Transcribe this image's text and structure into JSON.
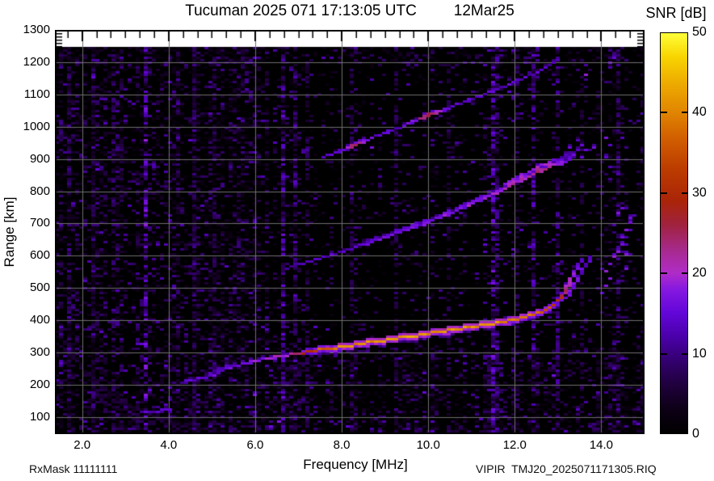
{
  "title": {
    "text": "Tucuman 2025 071 17:13:05 UTC",
    "date": "12Mar25"
  },
  "colorbar": {
    "title": "SNR [dB]",
    "min": 0,
    "max": 50,
    "ticks": [
      0,
      10,
      20,
      30,
      40,
      50
    ],
    "stops": [
      [
        0,
        "#000000"
      ],
      [
        3,
        "#0d0016"
      ],
      [
        6,
        "#1f003c"
      ],
      [
        9,
        "#33006e"
      ],
      [
        12,
        "#4a00a8"
      ],
      [
        15,
        "#6206d8"
      ],
      [
        18,
        "#8618e0"
      ],
      [
        20,
        "#b02cc8"
      ],
      [
        23,
        "#a62a8a"
      ],
      [
        26,
        "#a02240"
      ],
      [
        29,
        "#aa2408"
      ],
      [
        33,
        "#bc3c00"
      ],
      [
        37,
        "#d26000"
      ],
      [
        40,
        "#e08400"
      ],
      [
        44,
        "#eeae00"
      ],
      [
        47,
        "#f8d400"
      ],
      [
        50,
        "#ffff38"
      ]
    ]
  },
  "axes": {
    "x": {
      "label": "Frequency [MHz]",
      "unit": "MHz",
      "range": [
        1.37,
        15.0
      ],
      "tick_values": [
        2,
        4,
        6,
        8,
        10,
        12,
        14
      ],
      "tick_labels": [
        "2.0",
        "4.0",
        "6.0",
        "8.0",
        "10.0",
        "12.0",
        "14.0"
      ]
    },
    "y": {
      "label": "Range [km]",
      "unit": "km",
      "range": [
        47,
        1300
      ],
      "tick_values": [
        1300,
        1200,
        1100,
        1000,
        900,
        800,
        700,
        600,
        500,
        400,
        300,
        200,
        100
      ]
    }
  },
  "footer": {
    "rx_mask": "RxMask 11111111",
    "file": "VIPIR  TMJ20_2025071171305.RIQ"
  },
  "chart_data": {
    "type": "heatmap",
    "title": "Tucuman 2025 071 17:13:05 UTC 12Mar25",
    "xlabel": "Frequency [MHz]",
    "ylabel": "Range [km]",
    "value_label": "SNR [dB]",
    "x_range_mhz": [
      1.37,
      15.0
    ],
    "y_range_km": [
      47,
      1300
    ],
    "snr_range_db": [
      0,
      50
    ],
    "grid": true,
    "grid_color": "#6e6e6e",
    "background": "#000000",
    "no_data_band_km": [
      1247,
      1300
    ],
    "series": [
      {
        "name": "echo-1hop-O",
        "kind": "line",
        "thick": [
          1,
          1
        ],
        "points_f_km_db": [
          [
            4.25,
            212,
            13
          ],
          [
            4.5,
            218,
            13
          ],
          [
            4.75,
            226,
            14
          ],
          [
            5.0,
            232,
            14
          ],
          [
            5.2,
            248,
            15
          ],
          [
            5.45,
            262,
            15
          ],
          [
            5.7,
            270,
            16
          ],
          [
            5.95,
            277,
            17
          ],
          [
            6.2,
            283,
            18
          ],
          [
            6.45,
            290,
            19
          ],
          [
            6.7,
            295,
            21
          ],
          [
            6.95,
            301,
            25
          ],
          [
            7.3,
            308,
            32
          ],
          [
            7.6,
            314,
            38
          ],
          [
            8.0,
            322,
            40
          ],
          [
            8.4,
            330,
            41
          ],
          [
            8.8,
            338,
            40
          ],
          [
            9.2,
            347,
            41
          ],
          [
            9.6,
            355,
            42
          ],
          [
            10.0,
            363,
            41
          ],
          [
            10.4,
            371,
            42
          ],
          [
            10.8,
            380,
            41
          ],
          [
            11.2,
            388,
            40
          ],
          [
            11.6,
            397,
            41
          ],
          [
            11.9,
            404,
            40
          ],
          [
            12.2,
            413,
            39
          ],
          [
            12.45,
            423,
            38
          ],
          [
            12.65,
            434,
            36
          ],
          [
            12.8,
            446,
            35
          ],
          [
            12.95,
            460,
            33
          ],
          [
            13.05,
            477,
            28
          ],
          [
            13.13,
            495,
            24
          ],
          [
            13.2,
            513,
            20
          ],
          [
            13.27,
            532,
            18
          ],
          [
            13.33,
            550,
            17
          ],
          [
            13.4,
            568,
            16
          ],
          [
            13.47,
            586,
            15
          ],
          [
            13.54,
            603,
            15
          ]
        ]
      },
      {
        "name": "echo-1hop-cusp-branch",
        "kind": "line",
        "thick": [
          1,
          1
        ],
        "points_f_km_db": [
          [
            4.95,
            240,
            13
          ],
          [
            5.12,
            252,
            14
          ],
          [
            5.3,
            261,
            14
          ],
          [
            5.5,
            268,
            14
          ]
        ]
      },
      {
        "name": "echo-1hop-X-branch",
        "kind": "line",
        "thick": [
          1,
          1
        ],
        "points_f_km_db": [
          [
            13.15,
            470,
            16
          ],
          [
            13.25,
            494,
            16
          ],
          [
            13.35,
            518,
            16
          ],
          [
            13.45,
            542,
            15
          ],
          [
            13.55,
            565,
            15
          ],
          [
            13.65,
            588,
            14
          ],
          [
            13.73,
            608,
            14
          ]
        ]
      },
      {
        "name": "echo-1hop-scatter",
        "kind": "dots",
        "points_f_km_db": [
          [
            14.04,
            511,
            16
          ],
          [
            14.06,
            556,
            17
          ],
          [
            14.14,
            531,
            15
          ],
          [
            14.16,
            576,
            16
          ],
          [
            14.25,
            598,
            17
          ],
          [
            14.32,
            618,
            16
          ],
          [
            14.4,
            638,
            16
          ],
          [
            14.47,
            659,
            15
          ],
          [
            14.55,
            681,
            16
          ],
          [
            14.61,
            704,
            15
          ],
          [
            14.57,
            611,
            15
          ],
          [
            14.51,
            566,
            14
          ],
          [
            14.32,
            736,
            15
          ],
          [
            14.42,
            754,
            15
          ],
          [
            14.66,
            724,
            14
          ]
        ]
      },
      {
        "name": "echo-2hop",
        "kind": "line",
        "thick": [
          1,
          3
        ],
        "points_f_km_db": [
          [
            6.7,
            566,
            12
          ],
          [
            6.95,
            576,
            12
          ],
          [
            7.2,
            585,
            13
          ],
          [
            7.45,
            595,
            13
          ],
          [
            7.7,
            606,
            13
          ],
          [
            7.95,
            616,
            14
          ],
          [
            8.2,
            626,
            14
          ],
          [
            8.45,
            638,
            14
          ],
          [
            8.7,
            650,
            15
          ],
          [
            8.95,
            661,
            15
          ],
          [
            9.2,
            673,
            15
          ],
          [
            9.45,
            684,
            16
          ],
          [
            9.7,
            696,
            16
          ],
          [
            9.95,
            708,
            16
          ],
          [
            10.2,
            721,
            17
          ],
          [
            10.45,
            734,
            17
          ],
          [
            10.7,
            748,
            17
          ],
          [
            10.95,
            763,
            18
          ],
          [
            11.2,
            778,
            18
          ],
          [
            11.45,
            794,
            19
          ],
          [
            11.7,
            810,
            20
          ],
          [
            11.95,
            827,
            21
          ],
          [
            12.2,
            843,
            22
          ],
          [
            12.4,
            857,
            22
          ],
          [
            12.6,
            870,
            23
          ],
          [
            12.8,
            881,
            21
          ],
          [
            13.0,
            890,
            19
          ],
          [
            13.15,
            897,
            17
          ],
          [
            13.3,
            901,
            15
          ]
        ]
      },
      {
        "name": "echo-2hop-spread",
        "kind": "dots",
        "points_f_km_db": [
          [
            13.2,
            908,
            14
          ],
          [
            13.32,
            918,
            14
          ],
          [
            13.42,
            928,
            13
          ],
          [
            13.27,
            940,
            13
          ],
          [
            13.47,
            946,
            13
          ],
          [
            13.37,
            958,
            12
          ],
          [
            13.52,
            912,
            14
          ],
          [
            13.57,
            932,
            13
          ],
          [
            13.12,
            915,
            13
          ],
          [
            13.05,
            905,
            14
          ]
        ]
      },
      {
        "name": "echo-2hop-scatter",
        "kind": "dots",
        "points_f_km_db": [
          [
            13.76,
            939,
            14
          ],
          [
            14.04,
            966,
            15
          ],
          [
            14.1,
            911,
            14
          ]
        ]
      },
      {
        "name": "echo-3hop",
        "kind": "line",
        "thick": [
          1,
          1
        ],
        "points_f_km_db": [
          [
            7.55,
            910,
            13
          ],
          [
            7.8,
            922,
            13
          ],
          [
            8.05,
            935,
            14
          ],
          [
            8.2,
            945,
            26
          ],
          [
            8.3,
            950,
            24
          ],
          [
            8.55,
            963,
            15
          ],
          [
            8.8,
            977,
            14
          ],
          [
            9.05,
            990,
            15
          ],
          [
            9.3,
            1003,
            14
          ],
          [
            9.55,
            1016,
            15
          ],
          [
            9.8,
            1029,
            22
          ],
          [
            9.95,
            1038,
            28
          ],
          [
            10.1,
            1046,
            24
          ],
          [
            10.3,
            1055,
            15
          ],
          [
            10.55,
            1068,
            14
          ],
          [
            10.8,
            1081,
            14
          ],
          [
            11.05,
            1094,
            14
          ],
          [
            11.3,
            1107,
            13
          ],
          [
            11.55,
            1121,
            13
          ],
          [
            11.8,
            1134,
            14
          ],
          [
            12.05,
            1148,
            13
          ],
          [
            12.3,
            1162,
            13
          ],
          [
            12.5,
            1175,
            13
          ],
          [
            12.7,
            1189,
            12
          ],
          [
            12.85,
            1202,
            12
          ],
          [
            12.95,
            1212,
            12
          ]
        ]
      },
      {
        "name": "e-region-echo",
        "kind": "line",
        "thick": [
          1,
          1
        ],
        "points_f_km_db": [
          [
            3.3,
            120,
            13
          ],
          [
            3.5,
            123,
            14
          ],
          [
            3.7,
            122,
            13
          ],
          [
            3.9,
            125,
            13
          ],
          [
            4.05,
            121,
            12
          ]
        ]
      }
    ],
    "rfi_lines": [
      {
        "f": 2.72,
        "s": 0.4
      },
      {
        "f": 3.42,
        "s": 0.95
      },
      {
        "f": 4.55,
        "s": 0.35
      },
      {
        "f": 5.05,
        "s": 0.3
      },
      {
        "f": 6.57,
        "s": 0.75
      },
      {
        "f": 6.92,
        "s": 0.65
      },
      {
        "f": 7.2,
        "s": 0.3
      },
      {
        "f": 8.15,
        "s": 0.3
      },
      {
        "f": 9.25,
        "s": 0.35
      },
      {
        "f": 10.45,
        "s": 0.3
      },
      {
        "f": 11.44,
        "s": 0.85
      },
      {
        "f": 11.58,
        "s": 0.55
      },
      {
        "f": 12.02,
        "s": 0.35
      },
      {
        "f": 12.42,
        "s": 0.65
      },
      {
        "f": 12.98,
        "s": 0.55
      },
      {
        "f": 13.55,
        "s": 0.3
      },
      {
        "f": 14.38,
        "s": 0.55
      }
    ],
    "noise_bands": [
      [
        6.4,
        7.05
      ],
      [
        11.3,
        11.7
      ],
      [
        12.3,
        12.55
      ],
      [
        12.85,
        13.1
      ],
      [
        14.15,
        14.5
      ]
    ]
  }
}
